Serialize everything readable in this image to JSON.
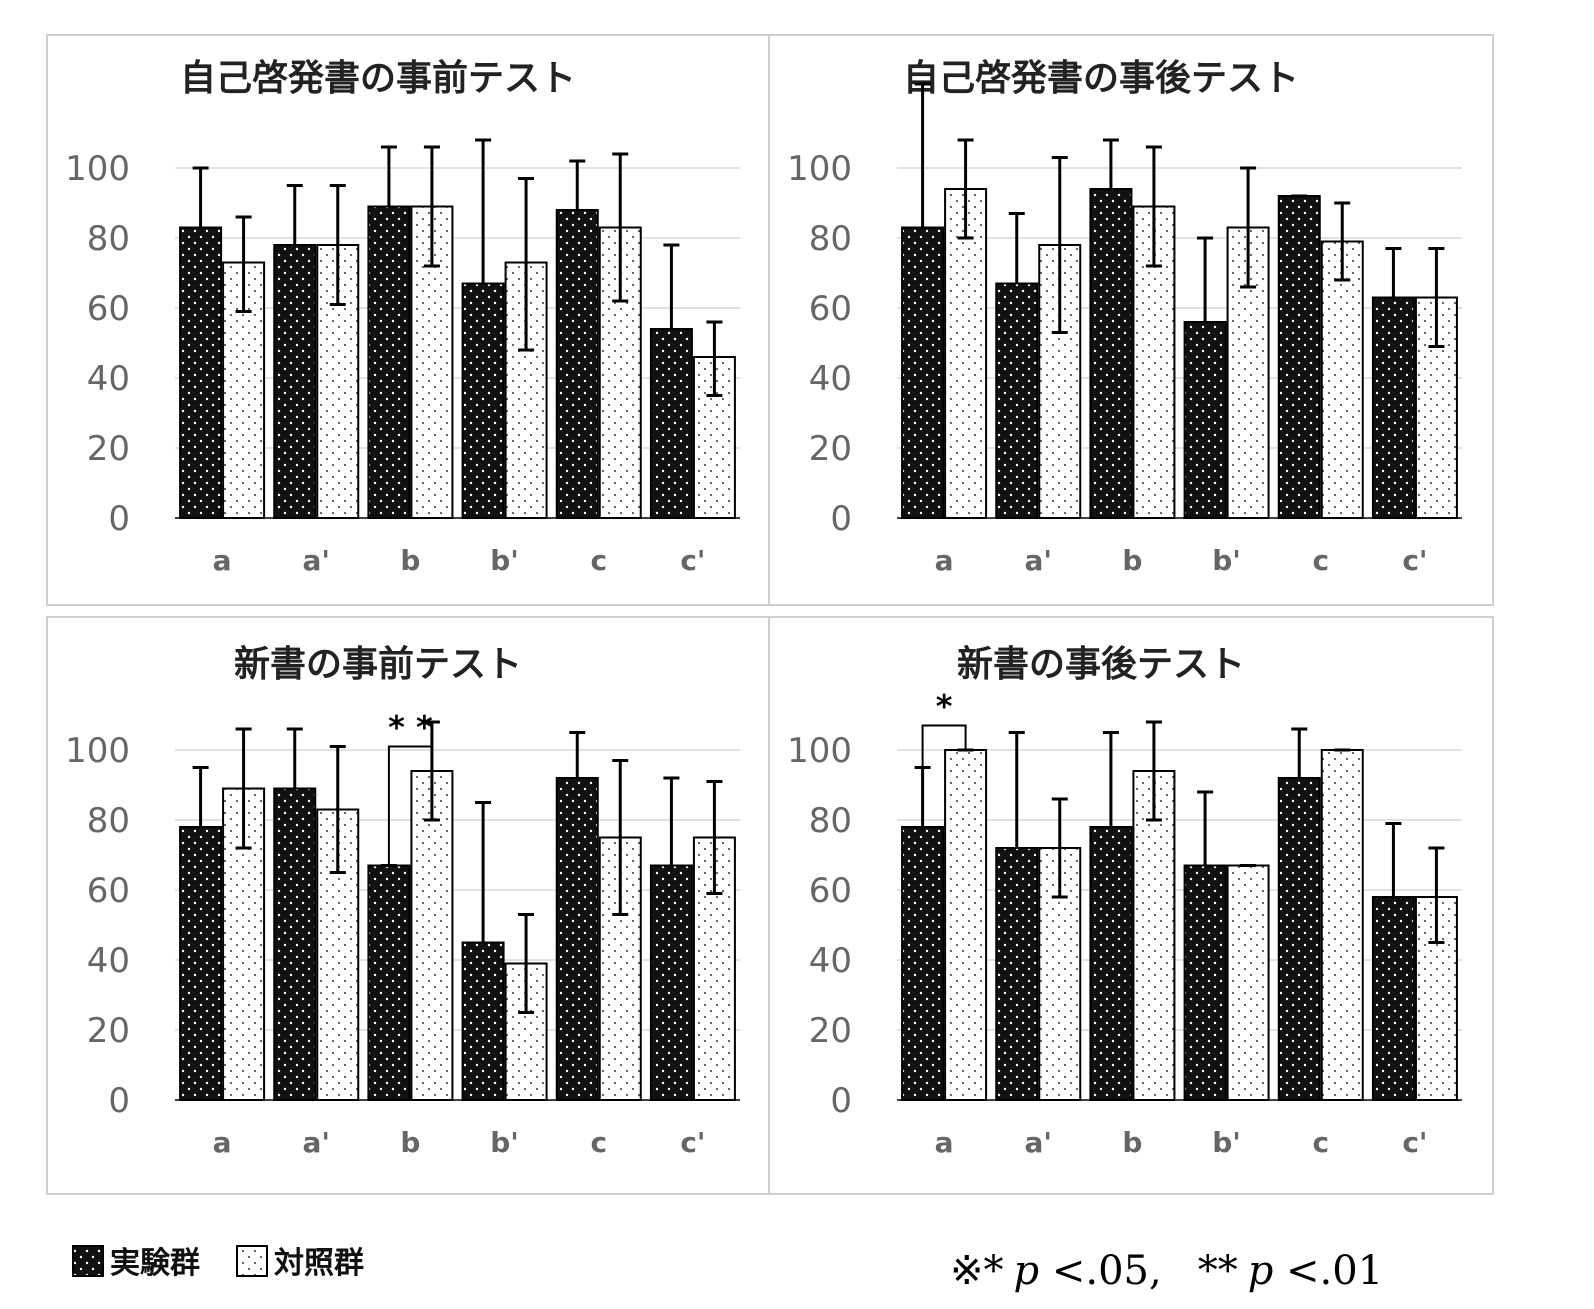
{
  "chart_data": [
    {
      "type": "bar",
      "title": "自己啓発書の事前テスト",
      "categories": [
        "a",
        "a'",
        "b",
        "b'",
        "c",
        "c'"
      ],
      "ylim": [
        0,
        100
      ],
      "yticks": [
        "0",
        "20",
        "40",
        "60",
        "80",
        "100"
      ],
      "grid": true,
      "series": [
        {
          "name": "実験群",
          "values": [
            83,
            78,
            89,
            67,
            88,
            54
          ],
          "error_upper": [
            100,
            95,
            106,
            108,
            102,
            78
          ],
          "error_lower": [
            83,
            78,
            89,
            67,
            88,
            54
          ]
        },
        {
          "name": "対照群",
          "values": [
            73,
            78,
            89,
            73,
            83,
            46
          ],
          "error_upper": [
            86,
            95,
            106,
            97,
            104,
            56
          ],
          "error_lower": [
            59,
            61,
            72,
            48,
            62,
            35
          ]
        }
      ],
      "significance": []
    },
    {
      "type": "bar",
      "title": "自己啓発書の事後テスト",
      "categories": [
        "a",
        "a'",
        "b",
        "b'",
        "c",
        "c'"
      ],
      "ylim": [
        0,
        100
      ],
      "yticks": [
        "0",
        "20",
        "40",
        "60",
        "80",
        "100"
      ],
      "grid": true,
      "series": [
        {
          "name": "実験群",
          "values": [
            83,
            67,
            94,
            56,
            92,
            63
          ],
          "error_upper": [
            124,
            87,
            108,
            80,
            92,
            77
          ],
          "error_lower": [
            83,
            67,
            94,
            56,
            92,
            63
          ]
        },
        {
          "name": "対照群",
          "values": [
            94,
            78,
            89,
            83,
            79,
            63
          ],
          "error_upper": [
            108,
            103,
            106,
            100,
            90,
            77
          ],
          "error_lower": [
            80,
            53,
            72,
            66,
            68,
            49
          ]
        }
      ],
      "significance": []
    },
    {
      "type": "bar",
      "title": "新書の事前テスト",
      "categories": [
        "a",
        "a'",
        "b",
        "b'",
        "c",
        "c'"
      ],
      "ylim": [
        0,
        100
      ],
      "yticks": [
        "0",
        "20",
        "40",
        "60",
        "80",
        "100"
      ],
      "grid": true,
      "series": [
        {
          "name": "実験群",
          "values": [
            78,
            89,
            67,
            45,
            92,
            67
          ],
          "error_upper": [
            95,
            106,
            67,
            85,
            105,
            92
          ],
          "error_lower": [
            78,
            89,
            67,
            45,
            92,
            67
          ]
        },
        {
          "name": "対照群",
          "values": [
            89,
            83,
            94,
            39,
            75,
            75
          ],
          "error_upper": [
            106,
            101,
            108,
            53,
            97,
            91
          ],
          "error_lower": [
            72,
            65,
            80,
            25,
            53,
            59
          ]
        }
      ],
      "significance": [
        {
          "category_index": 2,
          "label": "* *",
          "bracket_left_y": 67,
          "bracket_right_y": 94,
          "bracket_top_y": 101
        }
      ]
    },
    {
      "type": "bar",
      "title": "新書の事後テスト",
      "categories": [
        "a",
        "a'",
        "b",
        "b'",
        "c",
        "c'"
      ],
      "ylim": [
        0,
        100
      ],
      "yticks": [
        "0",
        "20",
        "40",
        "60",
        "80",
        "100"
      ],
      "grid": true,
      "series": [
        {
          "name": "実験群",
          "values": [
            78,
            72,
            78,
            67,
            92,
            58
          ],
          "error_upper": [
            95,
            105,
            105,
            88,
            106,
            79
          ],
          "error_lower": [
            78,
            72,
            78,
            67,
            92,
            58
          ]
        },
        {
          "name": "対照群",
          "values": [
            100,
            72,
            94,
            67,
            100,
            58
          ],
          "error_upper": [
            100,
            86,
            108,
            67,
            100,
            72
          ],
          "error_lower": [
            100,
            58,
            80,
            67,
            100,
            45
          ]
        }
      ],
      "significance": [
        {
          "category_index": 0,
          "label": "*",
          "bracket_left_y": 86,
          "bracket_right_y": 100,
          "bracket_top_y": 107
        }
      ]
    }
  ],
  "legend": {
    "placement": "bottom-left",
    "items": [
      {
        "name": "実験群",
        "pattern": "dark-dots"
      },
      {
        "name": "対照群",
        "pattern": "light-dots"
      }
    ]
  },
  "footnote": {
    "prefix": "※",
    "star1": "*",
    "p1": "p",
    "threshold1": " <.05,",
    "star2": "**",
    "p2": "p",
    "threshold2": " <.01"
  },
  "colors": {
    "experimental_fill": "#111111",
    "experimental_dot": "#ffffff",
    "control_fill": "#ffffff",
    "control_dot": "#555555"
  }
}
